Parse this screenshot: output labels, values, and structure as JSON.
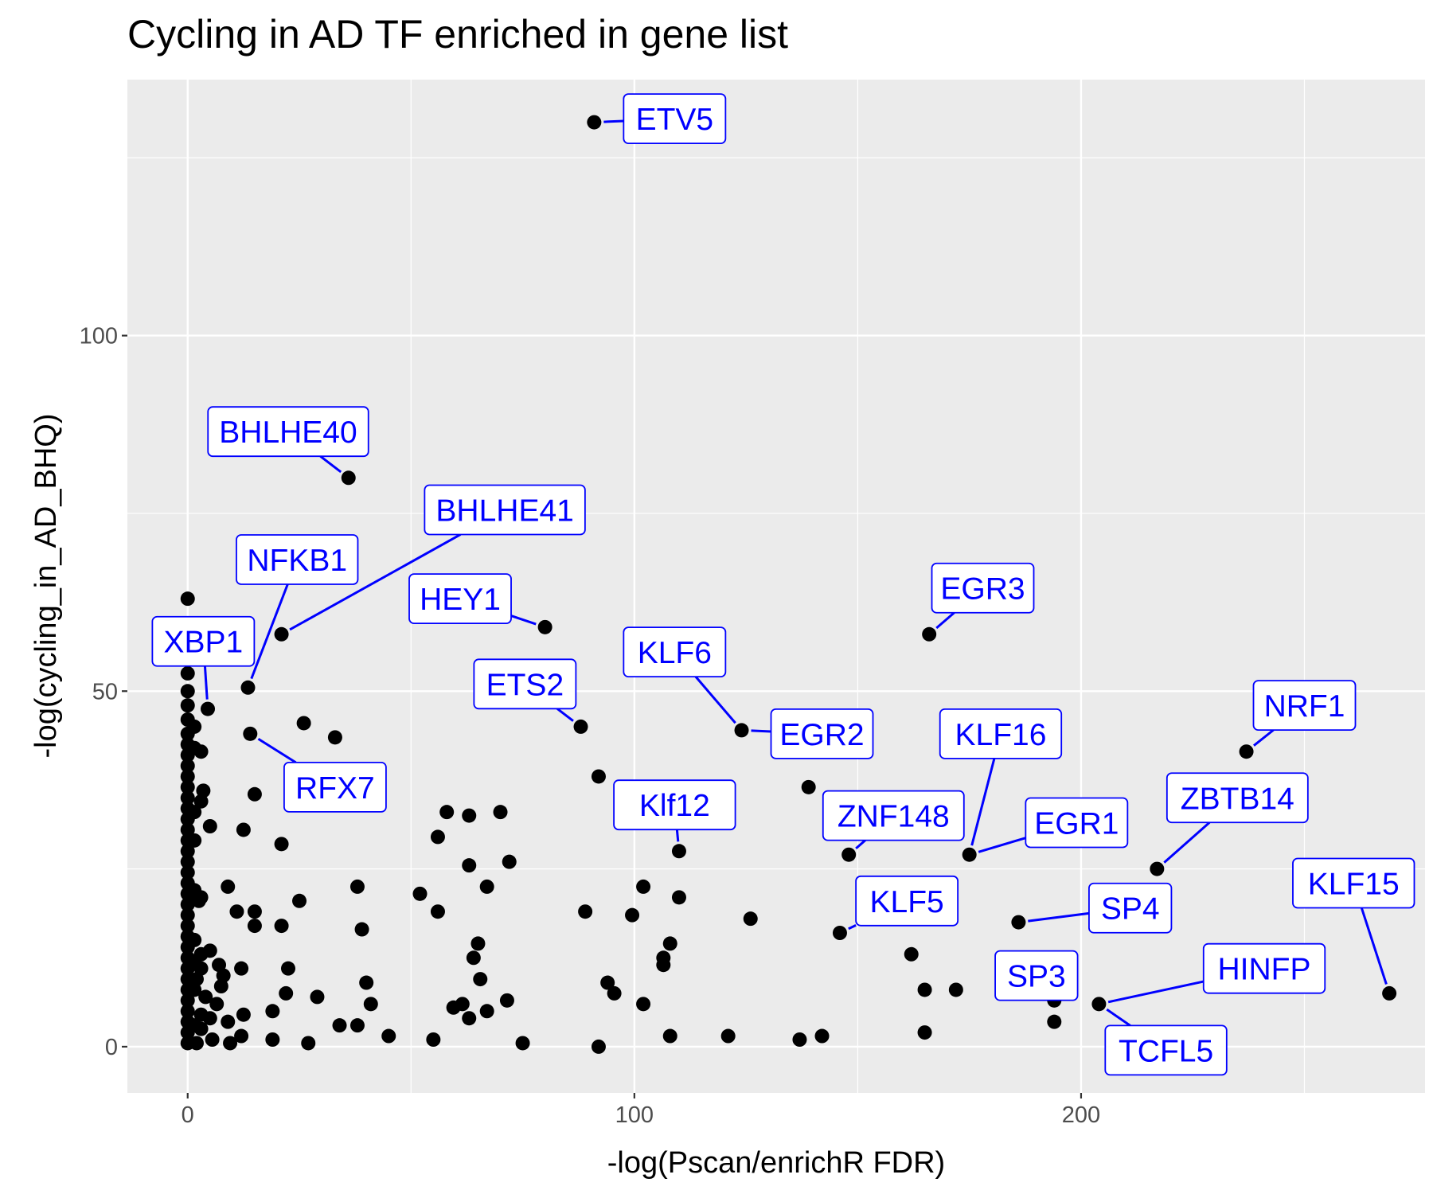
{
  "chart_data": {
    "type": "scatter",
    "title": "Cycling in AD TF enriched in gene list",
    "xlabel": "-log(Pscan/enrichR FDR)",
    "ylabel": "-log(cycling_in_AD_BHQ)",
    "xlim": [
      -13.5,
      277
    ],
    "ylim": [
      -6.5,
      136
    ],
    "x_ticks": [
      0,
      100,
      200
    ],
    "y_ticks": [
      0,
      50,
      100
    ],
    "grid": true,
    "background": "#ebebeb",
    "point_color": "#000000",
    "label_color": "#0000ff",
    "points": [
      {
        "x": 91,
        "y": 130
      },
      {
        "x": 36,
        "y": 80
      },
      {
        "x": 166,
        "y": 58
      },
      {
        "x": 21,
        "y": 58
      },
      {
        "x": 80,
        "y": 59
      },
      {
        "x": 0,
        "y": 63
      },
      {
        "x": 13.5,
        "y": 50.5
      },
      {
        "x": 4.5,
        "y": 47.5
      },
      {
        "x": 124,
        "y": 44.5
      },
      {
        "x": 88,
        "y": 45
      },
      {
        "x": 14,
        "y": 44
      },
      {
        "x": 26,
        "y": 45.5
      },
      {
        "x": 33,
        "y": 43.5
      },
      {
        "x": 237,
        "y": 41.5
      },
      {
        "x": 92,
        "y": 38
      },
      {
        "x": 139,
        "y": 36.5
      },
      {
        "x": 15,
        "y": 35.5
      },
      {
        "x": 3.5,
        "y": 36
      },
      {
        "x": 58,
        "y": 33
      },
      {
        "x": 63,
        "y": 32.5
      },
      {
        "x": 70,
        "y": 33
      },
      {
        "x": 5,
        "y": 31
      },
      {
        "x": 12.5,
        "y": 30.5
      },
      {
        "x": 56,
        "y": 29.5
      },
      {
        "x": 21,
        "y": 28.5
      },
      {
        "x": 110,
        "y": 27.5
      },
      {
        "x": 148,
        "y": 27
      },
      {
        "x": 175,
        "y": 27
      },
      {
        "x": 63,
        "y": 25.5
      },
      {
        "x": 72,
        "y": 26
      },
      {
        "x": 217,
        "y": 25
      },
      {
        "x": 9,
        "y": 22.5
      },
      {
        "x": 38,
        "y": 22.5
      },
      {
        "x": 67,
        "y": 22.5
      },
      {
        "x": 102,
        "y": 22.5
      },
      {
        "x": 52,
        "y": 21.5
      },
      {
        "x": 110,
        "y": 21
      },
      {
        "x": 2.5,
        "y": 20.5
      },
      {
        "x": 25,
        "y": 20.5
      },
      {
        "x": 11,
        "y": 19
      },
      {
        "x": 15,
        "y": 19
      },
      {
        "x": 56,
        "y": 19
      },
      {
        "x": 89,
        "y": 19
      },
      {
        "x": 99.5,
        "y": 18.5
      },
      {
        "x": 15,
        "y": 17
      },
      {
        "x": 21,
        "y": 17
      },
      {
        "x": 126,
        "y": 18
      },
      {
        "x": 186,
        "y": 17.5
      },
      {
        "x": 39,
        "y": 16.5
      },
      {
        "x": 146,
        "y": 16
      },
      {
        "x": 65,
        "y": 14.5
      },
      {
        "x": 108,
        "y": 14.5
      },
      {
        "x": 5,
        "y": 13.5
      },
      {
        "x": 7,
        "y": 11.5
      },
      {
        "x": 106.5,
        "y": 12.5
      },
      {
        "x": 106.5,
        "y": 11.5
      },
      {
        "x": 64,
        "y": 12.5
      },
      {
        "x": 162,
        "y": 13
      },
      {
        "x": 12,
        "y": 11
      },
      {
        "x": 22.5,
        "y": 11
      },
      {
        "x": 65.5,
        "y": 9.5
      },
      {
        "x": 8,
        "y": 10
      },
      {
        "x": 40,
        "y": 9
      },
      {
        "x": 94,
        "y": 9
      },
      {
        "x": 7.5,
        "y": 8.5
      },
      {
        "x": 22,
        "y": 7.5
      },
      {
        "x": 29,
        "y": 7
      },
      {
        "x": 95.5,
        "y": 7.5
      },
      {
        "x": 165,
        "y": 8
      },
      {
        "x": 172,
        "y": 8
      },
      {
        "x": 269,
        "y": 7.5
      },
      {
        "x": 6.5,
        "y": 6
      },
      {
        "x": 41,
        "y": 6
      },
      {
        "x": 59.5,
        "y": 5.5
      },
      {
        "x": 61.5,
        "y": 6
      },
      {
        "x": 71.5,
        "y": 6.5
      },
      {
        "x": 102,
        "y": 6
      },
      {
        "x": 194,
        "y": 6.5
      },
      {
        "x": 204,
        "y": 6
      },
      {
        "x": 19,
        "y": 5
      },
      {
        "x": 67,
        "y": 5
      },
      {
        "x": 12.5,
        "y": 4.5
      },
      {
        "x": 63,
        "y": 4
      },
      {
        "x": 5,
        "y": 4
      },
      {
        "x": 9,
        "y": 3.5
      },
      {
        "x": 34,
        "y": 3
      },
      {
        "x": 38,
        "y": 3
      },
      {
        "x": 194,
        "y": 3.5
      },
      {
        "x": 3,
        "y": 2.5
      },
      {
        "x": 12,
        "y": 1.5
      },
      {
        "x": 45,
        "y": 1.5
      },
      {
        "x": 108,
        "y": 1.5
      },
      {
        "x": 121,
        "y": 1.5
      },
      {
        "x": 137,
        "y": 1
      },
      {
        "x": 142,
        "y": 1.5
      },
      {
        "x": 165,
        "y": 2
      },
      {
        "x": 5.5,
        "y": 1
      },
      {
        "x": 9.5,
        "y": 0.5
      },
      {
        "x": 19,
        "y": 1
      },
      {
        "x": 27,
        "y": 0.5
      },
      {
        "x": 55,
        "y": 1
      },
      {
        "x": 75,
        "y": 0.5
      },
      {
        "x": 92,
        "y": 0
      },
      {
        "x": 2,
        "y": 0.5
      },
      {
        "x": 0,
        "y": 52.5
      },
      {
        "x": 0,
        "y": 50
      },
      {
        "x": 0,
        "y": 48
      },
      {
        "x": 0,
        "y": 46
      },
      {
        "x": 0,
        "y": 44
      },
      {
        "x": 0,
        "y": 42.5
      },
      {
        "x": 0,
        "y": 41
      },
      {
        "x": 0,
        "y": 39.5
      },
      {
        "x": 0,
        "y": 38
      },
      {
        "x": 0,
        "y": 36.5
      },
      {
        "x": 0,
        "y": 35
      },
      {
        "x": 0,
        "y": 33.5
      },
      {
        "x": 0,
        "y": 32
      },
      {
        "x": 0,
        "y": 30.5
      },
      {
        "x": 0,
        "y": 29
      },
      {
        "x": 0,
        "y": 27.5
      },
      {
        "x": 0,
        "y": 26
      },
      {
        "x": 0,
        "y": 24.5
      },
      {
        "x": 0,
        "y": 23
      },
      {
        "x": 0,
        "y": 21.5
      },
      {
        "x": 0,
        "y": 20
      },
      {
        "x": 0,
        "y": 18.5
      },
      {
        "x": 0,
        "y": 17
      },
      {
        "x": 0,
        "y": 15.5
      },
      {
        "x": 0,
        "y": 14
      },
      {
        "x": 0,
        "y": 12.5
      },
      {
        "x": 0,
        "y": 11
      },
      {
        "x": 0,
        "y": 9.5
      },
      {
        "x": 0,
        "y": 8
      },
      {
        "x": 0,
        "y": 6.5
      },
      {
        "x": 0,
        "y": 5
      },
      {
        "x": 0,
        "y": 3.5
      },
      {
        "x": 0,
        "y": 2
      },
      {
        "x": 0,
        "y": 0.5
      },
      {
        "x": 1.5,
        "y": 45
      },
      {
        "x": 1.5,
        "y": 42
      },
      {
        "x": 1.5,
        "y": 33
      },
      {
        "x": 1.5,
        "y": 29
      },
      {
        "x": 1.5,
        "y": 22
      },
      {
        "x": 1.5,
        "y": 15
      },
      {
        "x": 1.5,
        "y": 12
      },
      {
        "x": 1.5,
        "y": 8
      },
      {
        "x": 1.5,
        "y": 3
      },
      {
        "x": 3,
        "y": 41.5
      },
      {
        "x": 3,
        "y": 34.5
      },
      {
        "x": 3,
        "y": 21
      },
      {
        "x": 3,
        "y": 13
      },
      {
        "x": 3,
        "y": 11
      },
      {
        "x": 3,
        "y": 4.5
      },
      {
        "x": 4,
        "y": 7
      },
      {
        "x": 2,
        "y": 9.5
      }
    ],
    "labels": [
      {
        "text": "ETV5",
        "x": 91,
        "y": 130,
        "lx": 109,
        "ly": 130.5
      },
      {
        "text": "BHLHE40",
        "x": 36,
        "y": 80,
        "lx": 22.5,
        "ly": 86.5
      },
      {
        "text": "BHLHE41",
        "x": 21,
        "y": 58,
        "lx": 71,
        "ly": 75.5
      },
      {
        "text": "NFKB1",
        "x": 13.5,
        "y": 50.5,
        "lx": 24.5,
        "ly": 68.5
      },
      {
        "text": "HEY1",
        "x": 80,
        "y": 59,
        "lx": 61,
        "ly": 63
      },
      {
        "text": "XBP1",
        "x": 4.5,
        "y": 47.5,
        "lx": 3.5,
        "ly": 57
      },
      {
        "text": "EGR3",
        "x": 166,
        "y": 58,
        "lx": 178,
        "ly": 64.5
      },
      {
        "text": "KLF6",
        "x": 124,
        "y": 44.5,
        "lx": 109,
        "ly": 55.5
      },
      {
        "text": "ETS2",
        "x": 88,
        "y": 45,
        "lx": 75.5,
        "ly": 51
      },
      {
        "text": "NRF1",
        "x": 237,
        "y": 41.5,
        "lx": 250,
        "ly": 48
      },
      {
        "text": "EGR2",
        "x": 124,
        "y": 44.5,
        "lx": 142,
        "ly": 44
      },
      {
        "text": "KLF16",
        "x": 175,
        "y": 27,
        "lx": 182,
        "ly": 44
      },
      {
        "text": "RFX7",
        "x": 14,
        "y": 44,
        "lx": 33,
        "ly": 36.5
      },
      {
        "text": "Klf12",
        "x": 110,
        "y": 27.5,
        "lx": 109,
        "ly": 34
      },
      {
        "text": "ZBTB14",
        "x": 217,
        "y": 25,
        "lx": 235,
        "ly": 35
      },
      {
        "text": "ZNF148",
        "x": 148,
        "y": 27,
        "lx": 158,
        "ly": 32.5
      },
      {
        "text": "EGR1",
        "x": 175,
        "y": 27,
        "lx": 199,
        "ly": 31.5
      },
      {
        "text": "KLF15",
        "x": 269,
        "y": 7.5,
        "lx": 261,
        "ly": 23
      },
      {
        "text": "KLF5",
        "x": 146,
        "y": 16,
        "lx": 161,
        "ly": 20.5
      },
      {
        "text": "SP4",
        "x": 186,
        "y": 17.5,
        "lx": 211,
        "ly": 19.5
      },
      {
        "text": "HINFP",
        "x": 204,
        "y": 6,
        "lx": 241,
        "ly": 11
      },
      {
        "text": "SP3",
        "x": 194,
        "y": 6.5,
        "lx": 190,
        "ly": 10
      },
      {
        "text": "TCFL5",
        "x": 204,
        "y": 6,
        "lx": 219,
        "ly": -0.5
      }
    ]
  }
}
